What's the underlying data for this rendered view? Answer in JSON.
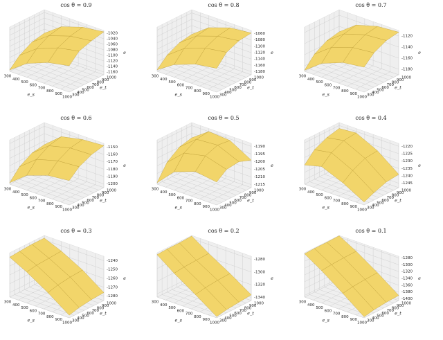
{
  "chart_data": [
    {
      "type": "surface",
      "title": "cos θ = 0.9",
      "xlabel": "e_s",
      "ylabel": "e_t",
      "zlabel": "e",
      "color": "#f2d56a",
      "x": [
        300,
        500,
        750,
        1000
      ],
      "y": [
        300,
        500,
        750,
        1000
      ],
      "z": [
        [
          -1165,
          -1120,
          -1090,
          -1075
        ],
        [
          -1130,
          -1085,
          -1055,
          -1040
        ],
        [
          -1105,
          -1060,
          -1035,
          -1025
        ],
        [
          -1095,
          -1050,
          -1025,
          -1015
        ]
      ],
      "xlim": [
        300,
        1000
      ],
      "ylim": [
        300,
        1000
      ],
      "zlim": [
        -1170,
        -1010
      ],
      "xticks": [
        300,
        400,
        500,
        600,
        700,
        800,
        900,
        1000
      ],
      "yticks": [
        300,
        400,
        500,
        600,
        700,
        800,
        900,
        1000
      ],
      "zticks": [
        -1160,
        -1140,
        -1120,
        -1100,
        -1080,
        -1060,
        -1040,
        -1020
      ]
    },
    {
      "type": "surface",
      "title": "cos θ = 0.8",
      "xlabel": "e_s",
      "ylabel": "e_t",
      "zlabel": "e",
      "color": "#f2d56a",
      "x": [
        300,
        500,
        750,
        1000
      ],
      "y": [
        300,
        500,
        750,
        1000
      ],
      "z": [
        [
          -1185,
          -1150,
          -1125,
          -1115
        ],
        [
          -1155,
          -1115,
          -1090,
          -1080
        ],
        [
          -1135,
          -1095,
          -1072,
          -1063
        ],
        [
          -1128,
          -1088,
          -1065,
          -1058
        ]
      ],
      "xlim": [
        300,
        1000
      ],
      "ylim": [
        300,
        1000
      ],
      "zlim": [
        -1190,
        -1050
      ],
      "xticks": [
        300,
        400,
        500,
        600,
        700,
        800,
        900,
        1000
      ],
      "yticks": [
        300,
        400,
        500,
        600,
        700,
        800,
        900,
        1000
      ],
      "zticks": [
        -1180,
        -1160,
        -1140,
        -1120,
        -1100,
        -1080,
        -1060
      ]
    },
    {
      "type": "surface",
      "title": "cos θ = 0.7",
      "xlabel": "e_s",
      "ylabel": "e_t",
      "zlabel": "e",
      "color": "#f2d56a",
      "x": [
        300,
        500,
        750,
        1000
      ],
      "y": [
        300,
        500,
        750,
        1000
      ],
      "z": [
        [
          -1188,
          -1165,
          -1150,
          -1145
        ],
        [
          -1168,
          -1145,
          -1132,
          -1128
        ],
        [
          -1155,
          -1132,
          -1120,
          -1117
        ],
        [
          -1150,
          -1127,
          -1116,
          -1113
        ]
      ],
      "xlim": [
        300,
        1000
      ],
      "ylim": [
        300,
        1000
      ],
      "zlim": [
        -1190,
        -1110
      ],
      "xticks": [
        300,
        400,
        500,
        600,
        700,
        800,
        900,
        1000
      ],
      "yticks": [
        300,
        400,
        500,
        600,
        700,
        800,
        900,
        1000
      ],
      "zticks": [
        -1180,
        -1160,
        -1140,
        -1120
      ]
    },
    {
      "type": "surface",
      "title": "cos θ = 0.6",
      "xlabel": "e_s",
      "ylabel": "e_t",
      "zlabel": "e",
      "color": "#f2d56a",
      "x": [
        300,
        500,
        750,
        1000
      ],
      "y": [
        300,
        500,
        750,
        1000
      ],
      "z": [
        [
          -1203,
          -1185,
          -1175,
          -1172
        ],
        [
          -1188,
          -1170,
          -1162,
          -1160
        ],
        [
          -1178,
          -1160,
          -1153,
          -1152
        ],
        [
          -1175,
          -1156,
          -1150,
          -1148
        ]
      ],
      "xlim": [
        300,
        1000
      ],
      "ylim": [
        300,
        1000
      ],
      "zlim": [
        -1205,
        -1145
      ],
      "xticks": [
        300,
        400,
        500,
        600,
        700,
        800,
        900,
        1000
      ],
      "yticks": [
        300,
        400,
        500,
        600,
        700,
        800,
        900,
        1000
      ],
      "zticks": [
        -1200,
        -1190,
        -1180,
        -1170,
        -1160,
        -1150
      ]
    },
    {
      "type": "surface",
      "title": "cos θ = 0.5",
      "xlabel": "e_s",
      "ylabel": "e_t",
      "zlabel": "e",
      "color": "#f2d56a",
      "x": [
        300,
        500,
        750,
        1000
      ],
      "y": [
        300,
        500,
        750,
        1000
      ],
      "z": [
        [
          -1216,
          -1205,
          -1200,
          -1202
        ],
        [
          -1206,
          -1196,
          -1193,
          -1197
        ],
        [
          -1200,
          -1191,
          -1190,
          -1196
        ],
        [
          -1198,
          -1190,
          -1191,
          -1199
        ]
      ],
      "xlim": [
        300,
        1000
      ],
      "ylim": [
        300,
        1000
      ],
      "zlim": [
        -1217,
        -1188
      ],
      "xticks": [
        300,
        400,
        500,
        600,
        700,
        800,
        900,
        1000
      ],
      "yticks": [
        300,
        400,
        500,
        600,
        700,
        800,
        900,
        1000
      ],
      "zticks": [
        -1215,
        -1210,
        -1205,
        -1200,
        -1195,
        -1190
      ]
    },
    {
      "type": "surface",
      "title": "cos θ = 0.4",
      "xlabel": "e_s",
      "ylabel": "e_t",
      "zlabel": "e",
      "color": "#f2d56a",
      "x": [
        300,
        500,
        750,
        1000
      ],
      "y": [
        300,
        500,
        750,
        1000
      ],
      "z": [
        [
          -1235,
          -1232,
          -1238,
          -1246
        ],
        [
          -1228,
          -1226,
          -1233,
          -1243
        ],
        [
          -1224,
          -1222,
          -1229,
          -1240
        ],
        [
          -1222,
          -1221,
          -1228,
          -1239
        ]
      ],
      "xlim": [
        300,
        1000
      ],
      "ylim": [
        300,
        1000
      ],
      "zlim": [
        -1248,
        -1218
      ],
      "xticks": [
        300,
        400,
        500,
        600,
        700,
        800,
        900,
        1000
      ],
      "yticks": [
        300,
        400,
        500,
        600,
        700,
        800,
        900,
        1000
      ],
      "zticks": [
        -1245,
        -1240,
        -1235,
        -1230,
        -1225,
        -1220
      ]
    },
    {
      "type": "surface",
      "title": "cos θ = 0.3",
      "xlabel": "e_s",
      "ylabel": "e_t",
      "zlabel": "e",
      "color": "#f2d56a",
      "x": [
        300,
        500,
        750,
        1000
      ],
      "y": [
        300,
        500,
        750,
        1000
      ],
      "z": [
        [
          -1240,
          -1250,
          -1265,
          -1282
        ],
        [
          -1239,
          -1248,
          -1262,
          -1279
        ],
        [
          -1238,
          -1247,
          -1260,
          -1277
        ],
        [
          -1238,
          -1246,
          -1259,
          -1276
        ]
      ],
      "xlim": [
        300,
        1000
      ],
      "ylim": [
        300,
        1000
      ],
      "zlim": [
        -1285,
        -1235
      ],
      "xticks": [
        300,
        400,
        500,
        600,
        700,
        800,
        900,
        1000
      ],
      "yticks": [
        300,
        400,
        500,
        600,
        700,
        800,
        900,
        1000
      ],
      "zticks": [
        -1280,
        -1270,
        -1260,
        -1250,
        -1240
      ]
    },
    {
      "type": "surface",
      "title": "cos θ = 0.2",
      "xlabel": "e_s",
      "ylabel": "e_t",
      "zlabel": "e",
      "color": "#f2d56a",
      "x": [
        300,
        500,
        750,
        1000
      ],
      "y": [
        300,
        500,
        750,
        1000
      ],
      "z": [
        [
          -1278,
          -1298,
          -1320,
          -1343
        ],
        [
          -1277,
          -1296,
          -1317,
          -1340
        ],
        [
          -1277,
          -1295,
          -1315,
          -1338
        ],
        [
          -1276,
          -1294,
          -1314,
          -1336
        ]
      ],
      "xlim": [
        300,
        1000
      ],
      "ylim": [
        300,
        1000
      ],
      "zlim": [
        -1345,
        -1275
      ],
      "xticks": [
        300,
        400,
        500,
        600,
        700,
        800,
        900,
        1000
      ],
      "yticks": [
        300,
        400,
        500,
        600,
        700,
        800,
        900,
        1000
      ],
      "zticks": [
        -1340,
        -1320,
        -1300,
        -1280
      ]
    },
    {
      "type": "surface",
      "title": "cos θ = 0.1",
      "xlabel": "e_s",
      "ylabel": "e_t",
      "zlabel": "e",
      "color": "#f2d56a",
      "x": [
        300,
        500,
        750,
        1000
      ],
      "y": [
        300,
        500,
        750,
        1000
      ],
      "z": [
        [
          -1278,
          -1310,
          -1355,
          -1402
        ],
        [
          -1277,
          -1307,
          -1350,
          -1396
        ],
        [
          -1277,
          -1305,
          -1347,
          -1392
        ],
        [
          -1276,
          -1304,
          -1345,
          -1390
        ]
      ],
      "xlim": [
        300,
        1000
      ],
      "ylim": [
        300,
        1000
      ],
      "zlim": [
        -1405,
        -1275
      ],
      "xticks": [
        300,
        400,
        500,
        600,
        700,
        800,
        900,
        1000
      ],
      "yticks": [
        300,
        400,
        500,
        600,
        700,
        800,
        900,
        1000
      ],
      "zticks": [
        -1400,
        -1380,
        -1360,
        -1340,
        -1320,
        -1300,
        -1280
      ]
    }
  ]
}
